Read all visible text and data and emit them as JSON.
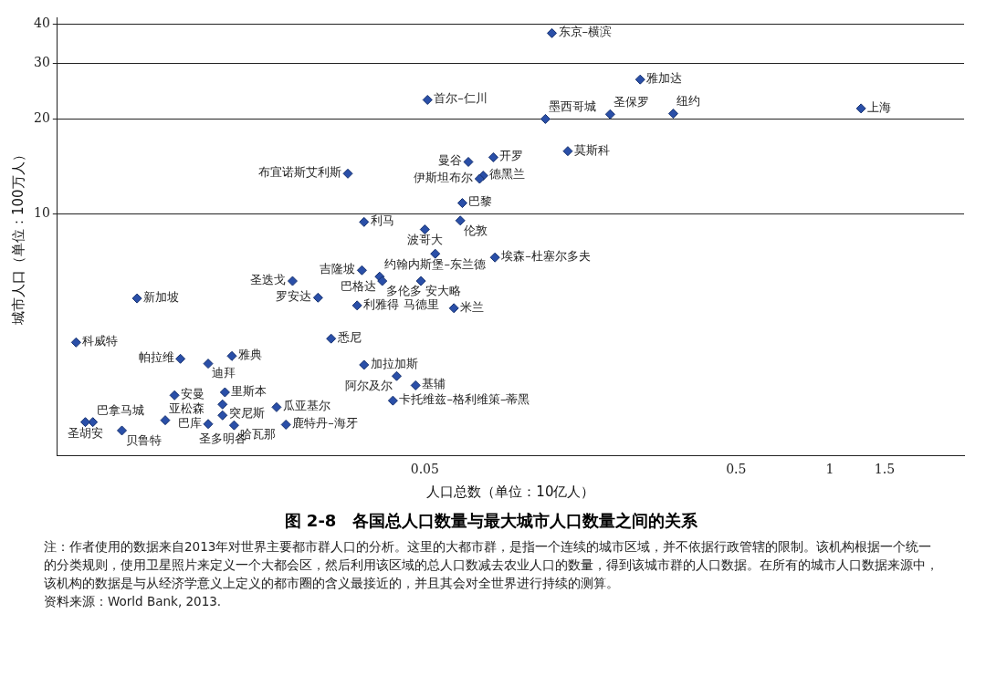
{
  "chart_data": {
    "type": "scatter",
    "title": "图 2-8　各国总人口数量与最大城市人口数量之间的关系",
    "xlabel": "人口总数（单位：10亿人）",
    "ylabel": "城市人口（单位：100万人）",
    "x": [
      0.128,
      0.246,
      0.051,
      0.122,
      0.197,
      0.314,
      1.26,
      0.144,
      0.069,
      0.083,
      0.077,
      0.075,
      0.0283,
      0.066,
      0.065,
      0.0319,
      0.05,
      0.054,
      0.084,
      0.0314,
      0.0358,
      0.0365,
      0.0486,
      0.0188,
      0.0227,
      0.0303,
      0.062,
      0.025,
      0.0319,
      0.0406,
      0.0467,
      0.0395,
      0.00595,
      0.00379,
      0.0082,
      0.01007,
      0.012,
      0.00785,
      0.0114,
      0.0112,
      0.0112,
      0.00733,
      0.00532,
      0.00429,
      0.00406,
      0.01007,
      0.0122,
      0.0167,
      0.0179
    ],
    "values": [
      37.5,
      26.7,
      23.0,
      20.0,
      20.7,
      20.8,
      21.6,
      15.8,
      14.6,
      15.1,
      13.2,
      12.9,
      13.4,
      10.8,
      9.5,
      9.4,
      8.9,
      7.45,
      7.25,
      6.6,
      6.3,
      6.1,
      6.1,
      6.1,
      5.4,
      5.1,
      5.0,
      4.0,
      3.3,
      3.04,
      2.84,
      2.54,
      5.37,
      3.89,
      3.45,
      3.33,
      3.52,
      2.64,
      2.7,
      2.47,
      2.28,
      2.2,
      2.04,
      2.17,
      2.17,
      2.14,
      2.12,
      2.42,
      2.13
    ],
    "color": "#2a4fa8",
    "marker": "diamond",
    "log": "xy",
    "grid": "y",
    "xlim": [
      0.0033,
      2.7
    ],
    "ylim": [
      1.7,
      42
    ],
    "xticks": [
      0.05,
      0.5,
      1,
      1.5
    ],
    "yticks": [
      10,
      20,
      30,
      40
    ],
    "annotations": [
      {
        "text": "东京–横滨",
        "x": 0.128,
        "y": 37.5
      },
      {
        "text": "雅加达",
        "x": 0.246,
        "y": 26.7
      },
      {
        "text": "首尔–仁川",
        "x": 0.051,
        "y": 23.0
      },
      {
        "text": "墨西哥城",
        "x": 0.122,
        "y": 20.0
      },
      {
        "text": "圣保罗",
        "x": 0.197,
        "y": 20.7
      },
      {
        "text": "纽约",
        "x": 0.314,
        "y": 20.8
      },
      {
        "text": "上海",
        "x": 1.26,
        "y": 21.6
      },
      {
        "text": "莫斯科",
        "x": 0.144,
        "y": 15.8
      },
      {
        "text": "曼谷",
        "x": 0.069,
        "y": 14.6
      },
      {
        "text": "开罗",
        "x": 0.083,
        "y": 15.1
      },
      {
        "text": "德黑兰",
        "x": 0.077,
        "y": 13.2
      },
      {
        "text": "伊斯坦布尔",
        "x": 0.075,
        "y": 12.9
      },
      {
        "text": "布宜诺斯艾利斯",
        "x": 0.0283,
        "y": 13.4
      },
      {
        "text": "巴黎",
        "x": 0.066,
        "y": 10.8
      },
      {
        "text": "伦敦",
        "x": 0.065,
        "y": 9.5
      },
      {
        "text": "利马",
        "x": 0.0319,
        "y": 9.4
      },
      {
        "text": "波哥大",
        "x": 0.05,
        "y": 8.9
      },
      {
        "text": "约翰内斯堡–东兰德",
        "x": 0.054,
        "y": 7.45
      },
      {
        "text": "埃森–杜塞尔多夫",
        "x": 0.084,
        "y": 7.25
      },
      {
        "text": "吉隆坡",
        "x": 0.0314,
        "y": 6.6
      },
      {
        "text": "巴格达",
        "x": 0.0358,
        "y": 6.3
      },
      {
        "text": "多伦多 安大略",
        "x": 0.0365,
        "y": 6.1
      },
      {
        "text": "马德里",
        "x": 0.0486,
        "y": 6.1
      },
      {
        "text": "圣迭戈",
        "x": 0.0188,
        "y": 6.1
      },
      {
        "text": "罗安达",
        "x": 0.0227,
        "y": 5.4
      },
      {
        "text": "利雅得",
        "x": 0.0303,
        "y": 5.1
      },
      {
        "text": "米兰",
        "x": 0.062,
        "y": 5.0
      },
      {
        "text": "悉尼",
        "x": 0.025,
        "y": 4.0
      },
      {
        "text": "加拉加斯",
        "x": 0.0319,
        "y": 3.3
      },
      {
        "text": "阿尔及尔",
        "x": 0.0406,
        "y": 3.04
      },
      {
        "text": "基辅",
        "x": 0.0467,
        "y": 2.84
      },
      {
        "text": "卡托维兹–格利维策–蒂黑",
        "x": 0.0395,
        "y": 2.54
      },
      {
        "text": "新加坡",
        "x": 0.00595,
        "y": 5.37
      },
      {
        "text": "科威特",
        "x": 0.00379,
        "y": 3.89
      },
      {
        "text": "帕拉维",
        "x": 0.0082,
        "y": 3.45
      },
      {
        "text": "迪拜",
        "x": 0.01007,
        "y": 3.33
      },
      {
        "text": "雅典",
        "x": 0.012,
        "y": 3.52
      },
      {
        "text": "安曼",
        "x": 0.00785,
        "y": 2.64
      },
      {
        "text": "里斯本",
        "x": 0.0114,
        "y": 2.7
      },
      {
        "text": "突尼斯",
        "x": 0.0112,
        "y": 2.47
      },
      {
        "text": "圣多明各",
        "x": 0.0112,
        "y": 2.28
      },
      {
        "text": "亚松森",
        "x": 0.00733,
        "y": 2.2
      },
      {
        "text": "贝鲁特",
        "x": 0.00532,
        "y": 2.04
      },
      {
        "text": "巴拿马城",
        "x": 0.00429,
        "y": 2.17
      },
      {
        "text": "圣胡安",
        "x": 0.00406,
        "y": 2.17
      },
      {
        "text": "巴库",
        "x": 0.01007,
        "y": 2.14
      },
      {
        "text": "哈瓦那",
        "x": 0.0122,
        "y": 2.12
      },
      {
        "text": "瓜亚基尔",
        "x": 0.0167,
        "y": 2.42
      },
      {
        "text": "鹿特丹–海牙",
        "x": 0.0179,
        "y": 2.13
      },
      "注：作者使用的数据来自2013年对世界主要都市群人口的分析。这里的大都市群，是指一个连续的城市区域，并不依据行政管辖的限制。该机构根据一个统一的分类规则，使用卫星照片来定义一个大都会区，然后利用该区域的总人口数减去农业人口的数量，得到该城市群的人口数据。在所有的城市人口数据来源中，该机构的数据是与从经济学意义上定义的都市圈的含义最接近的，并且其会对全世界进行持续的测算。",
      "资料来源：World Bank, 2013."
    ]
  }
}
